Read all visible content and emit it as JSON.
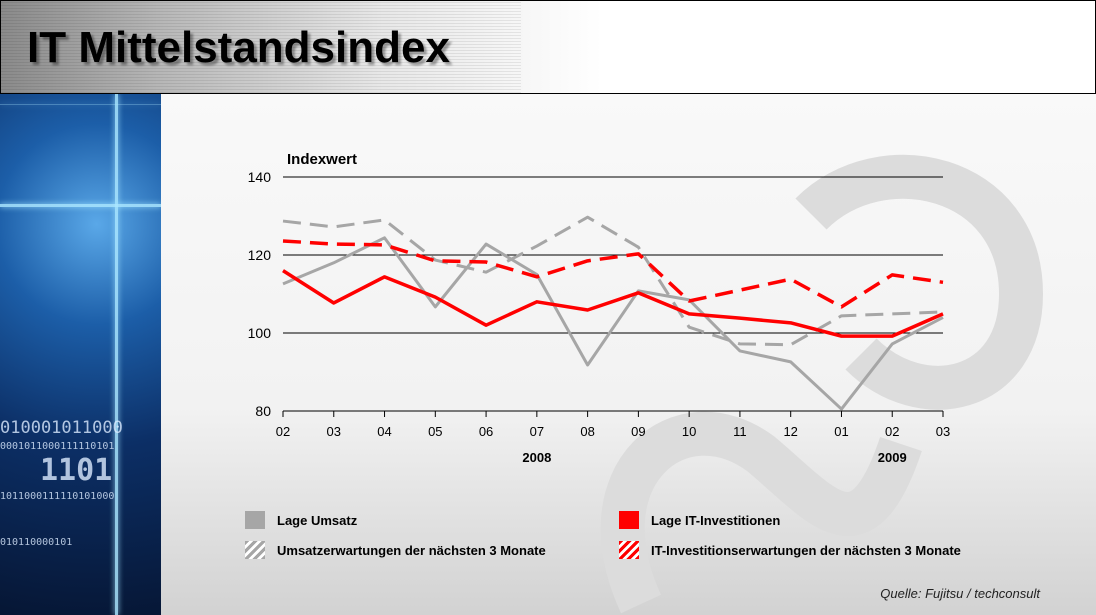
{
  "header": {
    "title": "IT Mittelstandsindex"
  },
  "side_panel": {
    "binary_lines": [
      "010001011000",
      "0001011000111110101",
      "1101",
      "1011000111110101000",
      "010110000101"
    ]
  },
  "source": "Quelle: Fujitsu / techconsult",
  "colors": {
    "gray": "#a6a6a6",
    "red": "#ff0000"
  },
  "chart_data": {
    "type": "line",
    "ylabel": "Indexwert",
    "ylim": [
      80,
      140
    ],
    "yticks": [
      "80",
      "100",
      "120",
      "140"
    ],
    "grid": true,
    "categories": [
      "02",
      "03",
      "04",
      "05",
      "06",
      "07",
      "08",
      "09",
      "10",
      "11",
      "12",
      "01",
      "02",
      "03"
    ],
    "year_labels": [
      {
        "label": "2008",
        "at_index": 5
      },
      {
        "label": "2009",
        "at_index": 12
      }
    ],
    "legend_position": "bottom",
    "series": [
      {
        "name": "Lage Umsatz",
        "color": "#a6a6a6",
        "style": "solid",
        "values": [
          112.6,
          118,
          124.4,
          106.7,
          122.8,
          115,
          91.8,
          110.8,
          108.5,
          95.4,
          92.6,
          80.5,
          97.2,
          104
        ]
      },
      {
        "name": "Lage IT-Investitionen",
        "color": "#ff0000",
        "style": "solid",
        "values": [
          116,
          107.7,
          114.4,
          109.2,
          102,
          108,
          105.9,
          110.3,
          104.9,
          103.8,
          102.6,
          99.2,
          99.2,
          104.9
        ]
      },
      {
        "name": "Umsatzerwartungen der nächsten 3 Monate",
        "color": "#a6a6a6",
        "style": "dashed",
        "values": [
          128.7,
          127.2,
          129,
          118.7,
          115.6,
          122.3,
          129.7,
          122,
          101.5,
          97.2,
          97,
          104.4,
          104.9,
          105.4
        ]
      },
      {
        "name": "IT-Investitionserwartungen der nächsten 3 Monate",
        "color": "#ff0000",
        "style": "dashed",
        "values": [
          123.6,
          122.8,
          122.6,
          118.5,
          118.2,
          114.4,
          118.5,
          120.3,
          108.2,
          111,
          113.8,
          106.7,
          114.9,
          113
        ]
      }
    ]
  }
}
